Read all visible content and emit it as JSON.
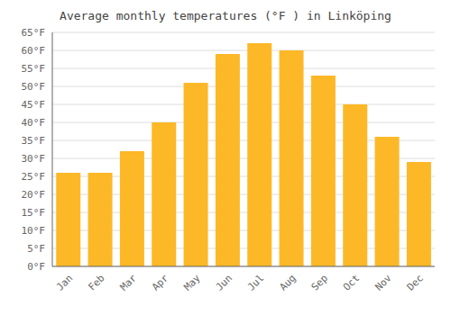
{
  "chart_data": {
    "type": "bar",
    "title": "Average monthly temperatures (°F ) in Linköping",
    "categories": [
      "Jan",
      "Feb",
      "Mar",
      "Apr",
      "May",
      "Jun",
      "Jul",
      "Aug",
      "Sep",
      "Oct",
      "Nov",
      "Dec"
    ],
    "values": [
      26,
      26,
      32,
      40,
      51,
      59,
      62,
      60,
      53,
      45,
      36,
      29
    ],
    "color": "#FDB827",
    "ylim": [
      0,
      65
    ],
    "yticks": [
      {
        "value": 0,
        "label": "0°F"
      },
      {
        "value": 5,
        "label": "5°F"
      },
      {
        "value": 10,
        "label": "10°F"
      },
      {
        "value": 15,
        "label": "15°F"
      },
      {
        "value": 20,
        "label": "20°F"
      },
      {
        "value": 25,
        "label": "25°F"
      },
      {
        "value": 30,
        "label": "30°F"
      },
      {
        "value": 35,
        "label": "35°F"
      },
      {
        "value": 40,
        "label": "40°F"
      },
      {
        "value": 45,
        "label": "45°F"
      },
      {
        "value": 50,
        "label": "50°F"
      },
      {
        "value": 55,
        "label": "55°F"
      },
      {
        "value": 60,
        "label": "60°F"
      },
      {
        "value": 65,
        "label": "65°F"
      }
    ],
    "grid": true
  }
}
